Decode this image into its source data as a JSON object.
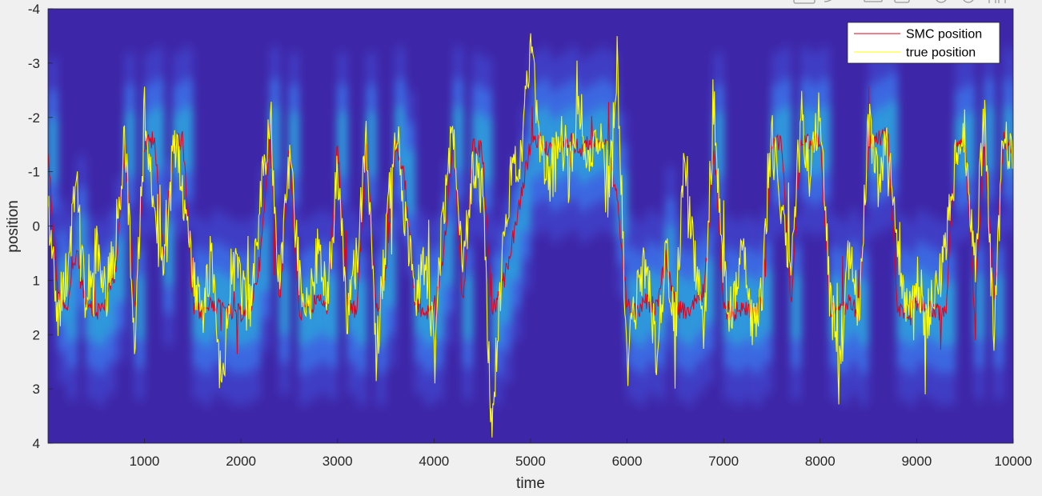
{
  "chart_data": {
    "type": "heatmap",
    "title": "",
    "xlabel": "time",
    "ylabel": "position",
    "xlim": [
      1,
      10000
    ],
    "ylim": [
      -4,
      4
    ],
    "y_axis_reversed": true,
    "xticks": [
      1000,
      2000,
      3000,
      4000,
      5000,
      6000,
      7000,
      8000,
      9000,
      10000
    ],
    "xtick_labels": [
      "1000",
      "2000",
      "3000",
      "4000",
      "5000",
      "6000",
      "7000",
      "8000",
      "9000",
      "10000"
    ],
    "yticks": [
      -4,
      -3,
      -2,
      -1,
      0,
      1,
      2,
      3,
      4
    ],
    "ytick_labels": [
      "-4",
      "-3",
      "-2",
      "-1",
      "0",
      "1",
      "2",
      "3",
      "4"
    ],
    "grid": false,
    "legend_position": "top-right",
    "background_colormap": "parula",
    "colors": {
      "background": "#3e26a8",
      "smc": "#e3001b",
      "truth": "#ffff00"
    },
    "series": [
      {
        "name": "SMC position",
        "color": "#e3001b",
        "x": [
          1,
          100,
          200,
          300,
          400,
          500,
          600,
          700,
          800,
          900,
          1000,
          1100,
          1200,
          1300,
          1400,
          1500,
          1600,
          1700,
          1800,
          1900,
          2000,
          2100,
          2200,
          2300,
          2400,
          2500,
          2600,
          2700,
          2800,
          2900,
          3000,
          3100,
          3200,
          3300,
          3400,
          3500,
          3600,
          3700,
          3800,
          3900,
          4000,
          4100,
          4200,
          4300,
          4400,
          4500,
          4600,
          4700,
          4800,
          4900,
          5000,
          5100,
          5200,
          5300,
          5400,
          5500,
          5600,
          5700,
          5800,
          5900,
          6000,
          6100,
          6200,
          6300,
          6400,
          6500,
          6600,
          6700,
          6800,
          6900,
          7000,
          7100,
          7200,
          7300,
          7400,
          7500,
          7600,
          7700,
          7800,
          7900,
          8000,
          8100,
          8200,
          8300,
          8400,
          8500,
          8600,
          8700,
          8800,
          8900,
          9000,
          9100,
          9200,
          9300,
          9400,
          9500,
          9600,
          9700,
          9800,
          9900,
          10000
        ],
        "y": [
          -1.4,
          1.2,
          1.5,
          0.4,
          1.5,
          1.6,
          1.4,
          0.8,
          -1.5,
          1.5,
          -1.5,
          -1.6,
          0.5,
          -1.5,
          -1.6,
          1.5,
          1.6,
          1.4,
          1.5,
          1.6,
          1.6,
          1.5,
          0.6,
          -1.6,
          1.4,
          -1.5,
          1.6,
          1.5,
          1.4,
          1.5,
          -1.5,
          1.4,
          1.6,
          -1.5,
          1.6,
          0.9,
          -1.6,
          -0.8,
          1.4,
          1.6,
          1.5,
          0.5,
          -1.6,
          1.5,
          -1.5,
          -1.4,
          1.6,
          1.2,
          0.4,
          -0.5,
          -1.5,
          -1.6,
          -1.4,
          -1.5,
          -1.6,
          -1.4,
          -1.5,
          -1.6,
          -1.5,
          -0.4,
          1.5,
          1.6,
          1.4,
          1.5,
          0.6,
          1.5,
          1.6,
          1.4,
          1.2,
          -1.5,
          1.5,
          1.6,
          1.5,
          1.6,
          1.4,
          -1.5,
          -1.6,
          1.5,
          -1.6,
          -1.5,
          -1.6,
          1.5,
          1.6,
          1.4,
          1.6,
          -1.5,
          -1.6,
          -1.7,
          1.5,
          1.6,
          1.4,
          1.5,
          1.6,
          1.6,
          -1.4,
          -1.5,
          1.5,
          -1.6,
          1.5,
          -1.6,
          -1.4
        ]
      },
      {
        "name": "true position",
        "color": "#ffff00",
        "x": [
          1,
          100,
          200,
          300,
          400,
          500,
          600,
          700,
          800,
          900,
          1000,
          1100,
          1200,
          1300,
          1400,
          1500,
          1600,
          1700,
          1800,
          1900,
          2000,
          2100,
          2200,
          2300,
          2400,
          2500,
          2600,
          2700,
          2800,
          2900,
          3000,
          3100,
          3200,
          3300,
          3400,
          3500,
          3600,
          3700,
          3800,
          3900,
          4000,
          4100,
          4200,
          4300,
          4400,
          4500,
          4600,
          4700,
          4800,
          4900,
          5000,
          5100,
          5200,
          5300,
          5400,
          5500,
          5600,
          5700,
          5800,
          5900,
          6000,
          6100,
          6200,
          6300,
          6400,
          6500,
          6600,
          6700,
          6800,
          6900,
          7000,
          7100,
          7200,
          7300,
          7400,
          7500,
          7600,
          7700,
          7800,
          7900,
          8000,
          8100,
          8200,
          8300,
          8400,
          8500,
          8600,
          8700,
          8800,
          8900,
          9000,
          9100,
          9200,
          9300,
          9400,
          9500,
          9600,
          9700,
          9800,
          9900,
          10000
        ],
        "y": [
          -0.3,
          1.6,
          0.8,
          -0.9,
          1.2,
          0.4,
          1.3,
          0.2,
          -1.6,
          2.0,
          -2.2,
          -0.4,
          1.1,
          -1.8,
          -0.6,
          0.9,
          1.8,
          0.4,
          3.2,
          0.6,
          1.2,
          1.5,
          -0.5,
          -2.0,
          1.1,
          -1.2,
          0.8,
          1.5,
          0.4,
          1.2,
          -1.0,
          1.6,
          0.6,
          -1.7,
          2.4,
          0.3,
          -1.9,
          -0.2,
          1.3,
          0.7,
          2.1,
          -0.4,
          -1.8,
          0.9,
          -1.1,
          -0.6,
          3.8,
          0.8,
          -0.9,
          -1.2,
          -3.2,
          -1.6,
          -0.6,
          -1.9,
          -0.8,
          -2.3,
          -1.1,
          -1.8,
          -0.4,
          -3.1,
          2.6,
          1.3,
          0.6,
          2.4,
          0.5,
          1.8,
          -1.4,
          0.7,
          1.9,
          -2.2,
          0.9,
          1.6,
          0.4,
          2.0,
          1.1,
          -1.7,
          -0.4,
          0.8,
          -2.1,
          -0.9,
          -2.3,
          1.4,
          2.4,
          0.5,
          1.6,
          -1.9,
          -0.8,
          -1.6,
          0.6,
          1.5,
          0.9,
          1.7,
          1.2,
          0.5,
          -1.2,
          -1.7,
          0.8,
          -2.1,
          1.9,
          -1.8,
          -1.0
        ]
      }
    ]
  }
}
